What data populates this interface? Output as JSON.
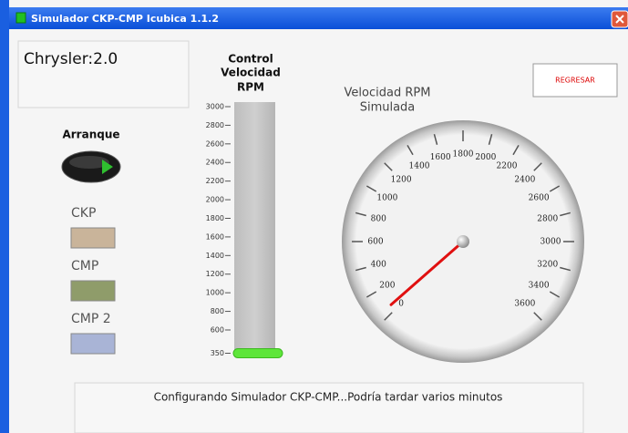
{
  "window": {
    "title": "Simulador CKP-CMP Icubica 1.1.2"
  },
  "model": "Chrysler:2.0",
  "back_button": "REGRESAR",
  "start": {
    "label": "Arranque"
  },
  "indicators": [
    "CKP",
    "CMP",
    "CMP 2"
  ],
  "slider": {
    "title": [
      "Control",
      "Velocidad",
      "RPM"
    ],
    "range": [
      350,
      3000
    ],
    "ticks": [
      3000,
      2800,
      2600,
      2400,
      2200,
      2000,
      1800,
      1600,
      1400,
      1200,
      1000,
      800,
      600,
      350
    ],
    "value": 350
  },
  "gauge": {
    "title": [
      "Velocidad RPM",
      "Simulada"
    ],
    "range": [
      0,
      3600
    ],
    "ticks": [
      0,
      200,
      400,
      600,
      800,
      1000,
      1200,
      1400,
      1600,
      1800,
      2000,
      2200,
      2400,
      2600,
      2800,
      3000,
      3200,
      3400,
      3600
    ],
    "value": 50
  },
  "status": "Configurando Simulador CKP-CMP...Podría tardar varios minutos"
}
